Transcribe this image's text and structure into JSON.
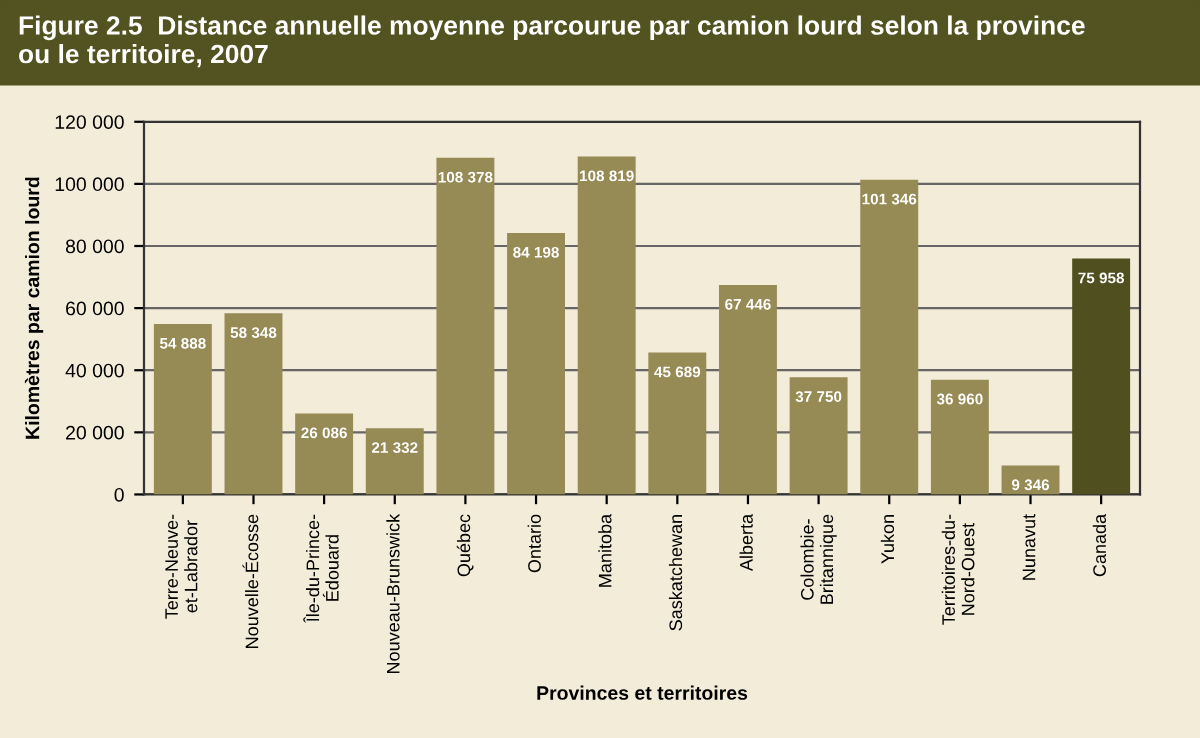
{
  "chart_data": {
    "type": "bar",
    "title": "Figure 2.5  Distance annuelle moyenne parcourue par camion lourd selon la province\nou le territoire, 2007",
    "xlabel": "Provinces et territoires",
    "ylabel": "Kilomètres par camion lourd",
    "categories": [
      "Terre-Neuve-\net-Labrador",
      "Nouvelle-Écosse",
      "Île-du-Prince-\nÉdouard",
      "Nouveau-Brunswick",
      "Québec",
      "Ontario",
      "Manitoba",
      "Saskatchewan",
      "Alberta",
      "Colombie-\nBritannique",
      "Yukon",
      "Territoires-du-\nNord-Ouest",
      "Nunavut",
      "Canada"
    ],
    "values": [
      54888,
      58348,
      26086,
      21332,
      108378,
      84198,
      108819,
      45689,
      67446,
      37750,
      101346,
      36960,
      9346,
      75958
    ],
    "value_labels": [
      "54 888",
      "58 348",
      "26 086",
      "21 332",
      "108 378",
      "84 198",
      "108 819",
      "45 689",
      "67 446",
      "37 750",
      "101 346",
      "36 960",
      "9 346",
      "75 958"
    ],
    "colors": [
      "#968a55",
      "#968a55",
      "#968a55",
      "#968a55",
      "#968a55",
      "#968a55",
      "#968a55",
      "#968a55",
      "#968a55",
      "#968a55",
      "#968a55",
      "#968a55",
      "#968a55",
      "#4f4f1f"
    ],
    "ylim": [
      0,
      120000
    ],
    "yticks": [
      {
        "value": 0,
        "label": "0"
      },
      {
        "value": 20000,
        "label": "20 000"
      },
      {
        "value": 40000,
        "label": "40 000"
      },
      {
        "value": 60000,
        "label": "60 000"
      },
      {
        "value": 80000,
        "label": "80 000"
      },
      {
        "value": 100000,
        "label": "100 000"
      },
      {
        "value": 120000,
        "label": "120 000"
      }
    ],
    "grid": "y",
    "legend": false
  }
}
